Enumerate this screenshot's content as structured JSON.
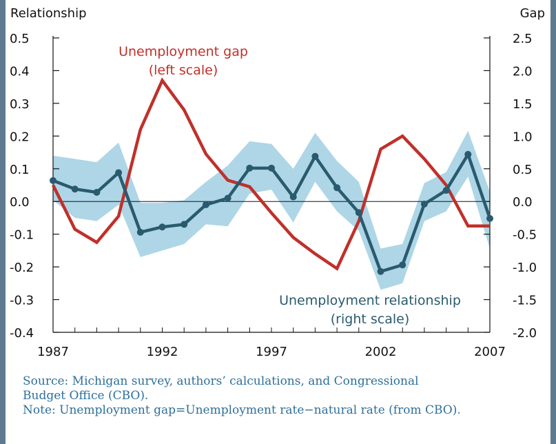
{
  "chart_data": {
    "type": "line",
    "title": "",
    "left_axis_label": "Relationship",
    "right_axis_label": "Gap",
    "x": [
      1987,
      1988,
      1989,
      1990,
      1991,
      1992,
      1993,
      1994,
      1995,
      1996,
      1997,
      1998,
      1999,
      2000,
      2001,
      2002,
      2003,
      2004,
      2005,
      2006,
      2007
    ],
    "x_ticks": [
      "1987",
      "1992",
      "1997",
      "2002",
      "2007"
    ],
    "left_ticks": [
      "0.5",
      "0.4",
      "0.3",
      "0.2",
      "0.1",
      "0.0",
      "-0.1",
      "-0.2",
      "-0.3",
      "-0.4"
    ],
    "right_ticks": [
      "2.5",
      "2.0",
      "1.5",
      "1.0",
      "0.5",
      "0.0",
      "-0.5",
      "-1.0",
      "-1.5",
      "-2.0"
    ],
    "xlim": [
      1987,
      2007
    ],
    "left_ylim": [
      -0.4,
      0.5
    ],
    "right_ylim": [
      -2.0,
      2.5
    ],
    "grid": false,
    "series": [
      {
        "name": "Unemployment gap",
        "axis": "left",
        "color": "#c0302a",
        "values": [
          0.05,
          -0.085,
          -0.125,
          -0.045,
          0.22,
          0.37,
          0.28,
          0.145,
          0.065,
          0.045,
          -0.035,
          -0.11,
          -0.16,
          -0.205,
          -0.06,
          0.16,
          0.2,
          0.13,
          0.05,
          -0.075,
          -0.075
        ]
      },
      {
        "name": "Unemployment relationship",
        "axis": "right",
        "color": "#2a5a6e",
        "values": [
          0.32,
          0.19,
          0.14,
          0.44,
          -0.47,
          -0.39,
          -0.35,
          -0.05,
          0.05,
          0.51,
          0.51,
          0.07,
          0.69,
          0.21,
          -0.17,
          -1.07,
          -0.97,
          -0.04,
          0.17,
          0.72,
          -0.26
        ],
        "band_upper": [
          0.7,
          0.65,
          0.6,
          0.9,
          -0.02,
          -0.02,
          0.02,
          0.3,
          0.55,
          0.92,
          0.88,
          0.5,
          1.05,
          0.62,
          0.3,
          -0.72,
          -0.65,
          0.28,
          0.45,
          1.08,
          0.15
        ],
        "band_lower": [
          0.02,
          -0.25,
          -0.3,
          -0.05,
          -0.85,
          -0.75,
          -0.65,
          -0.35,
          -0.38,
          0.12,
          0.18,
          -0.32,
          0.3,
          -0.15,
          -0.45,
          -1.35,
          -1.25,
          -0.3,
          -0.15,
          0.38,
          -0.72
        ],
        "band_color": "#aed6e6"
      }
    ],
    "annotations": [
      {
        "lines": [
          "Unemployment gap",
          "(left scale)"
        ],
        "color": "#c0302a"
      },
      {
        "lines": [
          "Unemployment relationship",
          "(right scale)"
        ],
        "color": "#2a5a6e"
      }
    ]
  },
  "notes": {
    "source_line1": "Source: Michigan survey, authors’ calculations, and Congressional",
    "source_line2": "Budget Office (CBO).",
    "note": "Note: Unemployment gap=Unemployment rate−natural rate (from CBO)."
  }
}
